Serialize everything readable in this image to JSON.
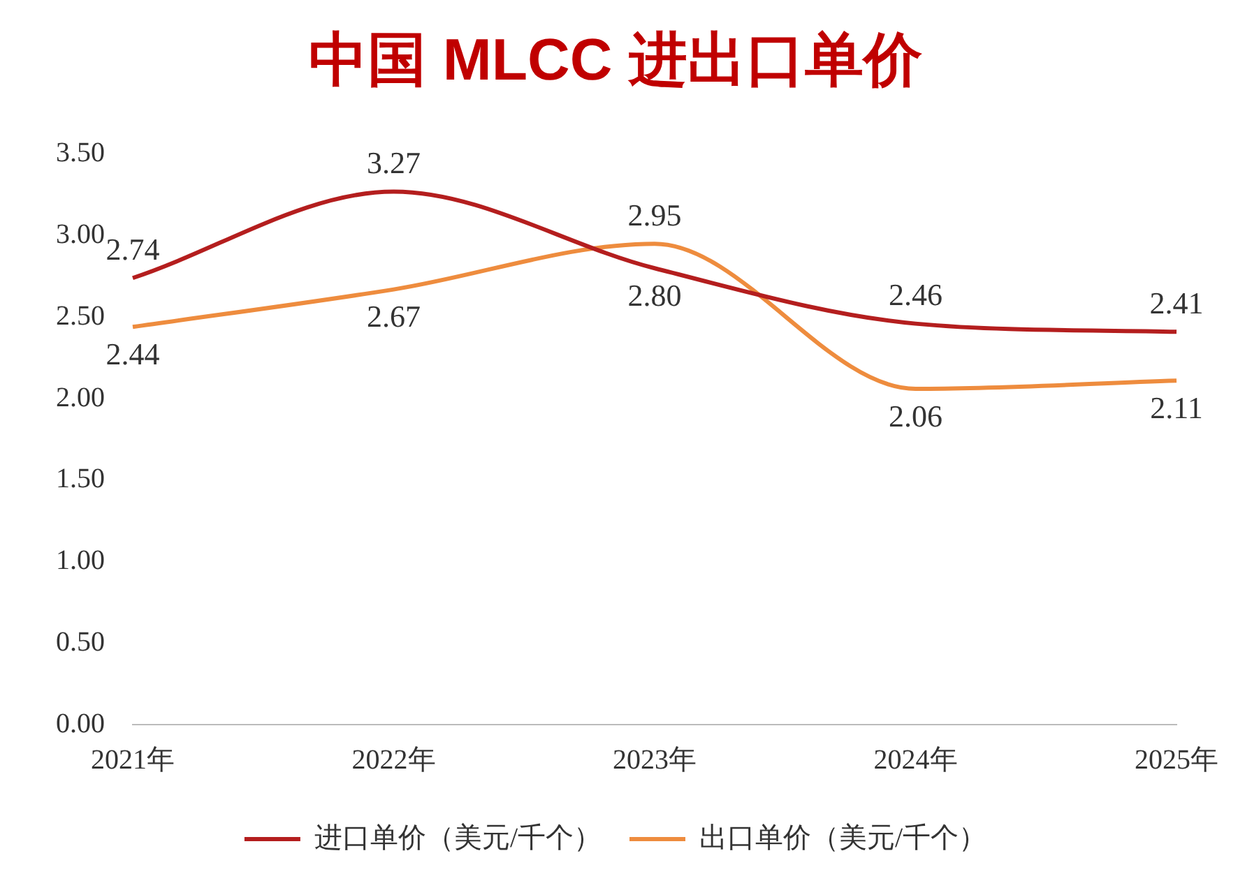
{
  "chart_data": {
    "type": "line",
    "title": "中国 MLCC 进出口单价",
    "categories": [
      "2021年",
      "2022年",
      "2023年",
      "2024年",
      "2025年"
    ],
    "series": [
      {
        "name": "进口单价（美元/千个）",
        "color": "#b41e1e",
        "values": [
          2.74,
          3.27,
          2.8,
          2.46,
          2.41
        ],
        "value_labels": [
          "2.74",
          "3.27",
          "2.80",
          "2.46",
          "2.41"
        ]
      },
      {
        "name": "出口单价（美元/千个）",
        "color": "#ee8c3e",
        "values": [
          2.44,
          2.67,
          2.95,
          2.06,
          2.11
        ],
        "value_labels": [
          "2.44",
          "2.67",
          "2.95",
          "2.06",
          "2.11"
        ]
      }
    ],
    "ylim": [
      0,
      3.5
    ],
    "yticks": [
      {
        "value": 0,
        "label": "0.00"
      },
      {
        "value": 0.5,
        "label": "0.50"
      },
      {
        "value": 1,
        "label": "1.00"
      },
      {
        "value": 1.5,
        "label": "1.50"
      },
      {
        "value": 2,
        "label": "2.00"
      },
      {
        "value": 2.5,
        "label": "2.50"
      },
      {
        "value": 3,
        "label": "3.00"
      },
      {
        "value": 3.5,
        "label": "3.50"
      }
    ],
    "grid": false,
    "legend": "bottom",
    "marker": "none",
    "line_style": "solid"
  }
}
